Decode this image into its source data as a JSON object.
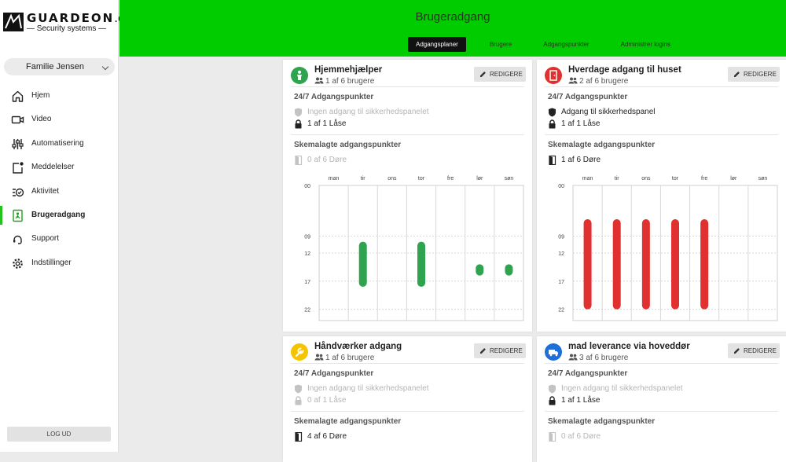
{
  "brand": {
    "name": "GUARDEON",
    "suffix": ".dk",
    "tagline": "— Security systems —"
  },
  "family_select": {
    "value": "Familie Jensen"
  },
  "nav": [
    {
      "label": "Hjem",
      "icon": "home-icon"
    },
    {
      "label": "Video",
      "icon": "video-icon"
    },
    {
      "label": "Automatisering",
      "icon": "sliders-icon"
    },
    {
      "label": "Meddelelser",
      "icon": "notification-icon"
    },
    {
      "label": "Aktivitet",
      "icon": "activity-icon"
    },
    {
      "label": "Brugeradgang",
      "icon": "user-access-icon",
      "active": true
    },
    {
      "label": "Support",
      "icon": "headset-icon"
    },
    {
      "label": "Indstillinger",
      "icon": "gear-icon"
    }
  ],
  "logout_label": "LOG UD",
  "header": {
    "title": "Brugeradgang"
  },
  "tabs": [
    {
      "label": "Adgangsplaner",
      "active": true
    },
    {
      "label": "Brugere"
    },
    {
      "label": "Adgangspunkter"
    },
    {
      "label": "Administrer logins"
    }
  ],
  "edit_label": "REDIGERE",
  "days": [
    "man",
    "tir",
    "ons",
    "tor",
    "fre",
    "lør",
    "søn"
  ],
  "hours": [
    "00",
    "09",
    "12",
    "17",
    "22"
  ],
  "cards": [
    {
      "title": "Hjemmehjælper",
      "users": "1 af 6 brugere",
      "icon": "person-icon",
      "color": "#2ea44f",
      "section_247": "24/7 Adgangspunkter",
      "panel": {
        "text": "Ingen adgang til sikkerhedspanelet",
        "active": false
      },
      "locks": {
        "text": "1 af 1 Låse",
        "active": true
      },
      "section_sched": "Skemalagte adgangspunkter",
      "doors": {
        "text": "0 af 6 Døre",
        "active": false
      },
      "schedule": [
        {
          "day": 1,
          "from": 10,
          "to": 18
        },
        {
          "day": 3,
          "from": 10,
          "to": 18
        },
        {
          "day": 5,
          "from": 14,
          "to": 16
        },
        {
          "day": 6,
          "from": 14,
          "to": 16
        }
      ]
    },
    {
      "title": "Hverdage adgang til huset",
      "users": "2 af 6 brugere",
      "icon": "door-icon",
      "color": "#e0302f",
      "section_247": "24/7 Adgangspunkter",
      "panel": {
        "text": "Adgang til sikkerhedspanel",
        "active": true
      },
      "locks": {
        "text": "1 af 1 Låse",
        "active": true
      },
      "section_sched": "Skemalagte adgangspunkter",
      "doors": {
        "text": "1 af 6 Døre",
        "active": true
      },
      "schedule": [
        {
          "day": 0,
          "from": 6,
          "to": 22
        },
        {
          "day": 1,
          "from": 6,
          "to": 22
        },
        {
          "day": 2,
          "from": 6,
          "to": 22
        },
        {
          "day": 3,
          "from": 6,
          "to": 22
        },
        {
          "day": 4,
          "from": 6,
          "to": 22
        }
      ]
    },
    {
      "title": "Håndværker adgang",
      "users": "1 af 6 brugere",
      "icon": "wrench-icon",
      "color": "#f5c400",
      "section_247": "24/7 Adgangspunkter",
      "panel": {
        "text": "Ingen adgang til sikkerhedspanelet",
        "active": false
      },
      "locks": {
        "text": "0 af 1 Låse",
        "active": false
      },
      "section_sched": "Skemalagte adgangspunkter",
      "doors": {
        "text": "4 af 6 Døre",
        "active": true
      }
    },
    {
      "title": "mad leverance via hoveddør",
      "users": "3 af 6 brugere",
      "icon": "truck-icon",
      "color": "#1e6fd9",
      "section_247": "24/7 Adgangspunkter",
      "panel": {
        "text": "Ingen adgang til sikkerhedspanelet",
        "active": false
      },
      "locks": {
        "text": "1 af 1 Låse",
        "active": true
      },
      "section_sched": "Skemalagte adgangspunkter",
      "doors": {
        "text": "0 af 6 Døre",
        "active": false
      }
    }
  ]
}
